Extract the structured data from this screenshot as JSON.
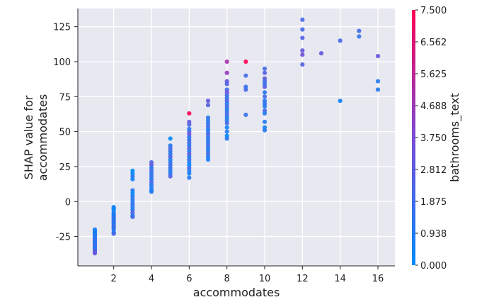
{
  "chart_data": {
    "type": "scatter",
    "title": "",
    "xlabel": "accommodates",
    "ylabel_lines": [
      "SHAP value for",
      "accommodates"
    ],
    "xlim": [
      0.1,
      16.9
    ],
    "ylim": [
      -46,
      138
    ],
    "x_ticks": [
      2,
      4,
      6,
      8,
      10,
      12,
      14,
      16
    ],
    "y_ticks": [
      -25,
      0,
      25,
      50,
      75,
      100,
      125
    ],
    "grid": true,
    "plot_background": "#e8e8f1",
    "colorbar": {
      "label": "bathrooms_text",
      "min": 0.0,
      "max": 7.5,
      "ticks": [
        "0.000",
        "0.938",
        "1.875",
        "2.812",
        "3.750",
        "4.688",
        "5.625",
        "6.562",
        "7.500"
      ],
      "colors": [
        "#008afb",
        "#7a4ad6",
        "#ff0052"
      ]
    },
    "points": [
      {
        "x": 1,
        "y": -20,
        "c": 1.0
      },
      {
        "x": 1,
        "y": -21,
        "c": 0.0
      },
      {
        "x": 1,
        "y": -22,
        "c": 1.0
      },
      {
        "x": 1,
        "y": -23,
        "c": 0.5
      },
      {
        "x": 1,
        "y": -24,
        "c": 1.0
      },
      {
        "x": 1,
        "y": -25,
        "c": 1.5
      },
      {
        "x": 1,
        "y": -26,
        "c": 1.0
      },
      {
        "x": 1,
        "y": -27,
        "c": 1.0
      },
      {
        "x": 1,
        "y": -28,
        "c": 2.0
      },
      {
        "x": 1,
        "y": -29,
        "c": 1.0
      },
      {
        "x": 1,
        "y": -30,
        "c": 1.5
      },
      {
        "x": 1,
        "y": -31,
        "c": 1.0
      },
      {
        "x": 1,
        "y": -32,
        "c": 2.5
      },
      {
        "x": 1,
        "y": -33,
        "c": 1.0
      },
      {
        "x": 1,
        "y": -34,
        "c": 1.0
      },
      {
        "x": 1,
        "y": -35,
        "c": 2.0
      },
      {
        "x": 1,
        "y": -36,
        "c": 3.0
      },
      {
        "x": 1,
        "y": -37,
        "c": 3.0
      },
      {
        "x": 2,
        "y": -4,
        "c": 0.0
      },
      {
        "x": 2,
        "y": -5,
        "c": 1.0
      },
      {
        "x": 2,
        "y": -6,
        "c": 0.0
      },
      {
        "x": 2,
        "y": -8,
        "c": 1.0
      },
      {
        "x": 2,
        "y": -9,
        "c": 1.0
      },
      {
        "x": 2,
        "y": -10,
        "c": 0.5
      },
      {
        "x": 2,
        "y": -11,
        "c": 1.0
      },
      {
        "x": 2,
        "y": -12,
        "c": 1.5
      },
      {
        "x": 2,
        "y": -13,
        "c": 1.0
      },
      {
        "x": 2,
        "y": -14,
        "c": 1.0
      },
      {
        "x": 2,
        "y": -15,
        "c": 2.0
      },
      {
        "x": 2,
        "y": -16,
        "c": 1.0
      },
      {
        "x": 2,
        "y": -17,
        "c": 1.0
      },
      {
        "x": 2,
        "y": -18,
        "c": 2.5
      },
      {
        "x": 2,
        "y": -19,
        "c": 1.0
      },
      {
        "x": 2,
        "y": -20,
        "c": 1.5
      },
      {
        "x": 2,
        "y": -22,
        "c": 1.0
      },
      {
        "x": 2,
        "y": -23,
        "c": 2.0
      },
      {
        "x": 3,
        "y": 22,
        "c": 0.0
      },
      {
        "x": 3,
        "y": 20,
        "c": 0.0
      },
      {
        "x": 3,
        "y": 18,
        "c": 1.0
      },
      {
        "x": 3,
        "y": 16,
        "c": 0.5
      },
      {
        "x": 3,
        "y": 8,
        "c": 1.0
      },
      {
        "x": 3,
        "y": 6,
        "c": 0.0
      },
      {
        "x": 3,
        "y": 4,
        "c": 1.0
      },
      {
        "x": 3,
        "y": 2,
        "c": 1.0
      },
      {
        "x": 3,
        "y": 0,
        "c": 1.0
      },
      {
        "x": 3,
        "y": -2,
        "c": 1.5
      },
      {
        "x": 3,
        "y": -4,
        "c": 1.0
      },
      {
        "x": 3,
        "y": -6,
        "c": 1.0
      },
      {
        "x": 3,
        "y": -8,
        "c": 2.5
      },
      {
        "x": 3,
        "y": -10,
        "c": 1.0
      },
      {
        "x": 3,
        "y": -11,
        "c": 2.0
      },
      {
        "x": 4,
        "y": 28,
        "c": 2.5
      },
      {
        "x": 4,
        "y": 26,
        "c": 3.0
      },
      {
        "x": 4,
        "y": 24,
        "c": 1.0
      },
      {
        "x": 4,
        "y": 22,
        "c": 2.0
      },
      {
        "x": 4,
        "y": 20,
        "c": 1.0
      },
      {
        "x": 4,
        "y": 18,
        "c": 1.5
      },
      {
        "x": 4,
        "y": 16,
        "c": 1.0
      },
      {
        "x": 4,
        "y": 14,
        "c": 2.0
      },
      {
        "x": 4,
        "y": 12,
        "c": 1.0
      },
      {
        "x": 4,
        "y": 10,
        "c": 1.0
      },
      {
        "x": 4,
        "y": 8,
        "c": 0.5
      },
      {
        "x": 4,
        "y": 7,
        "c": 1.0
      },
      {
        "x": 5,
        "y": 45,
        "c": 0.0
      },
      {
        "x": 5,
        "y": 40,
        "c": 1.0
      },
      {
        "x": 5,
        "y": 38,
        "c": 2.0
      },
      {
        "x": 5,
        "y": 36,
        "c": 1.5
      },
      {
        "x": 5,
        "y": 34,
        "c": 1.0
      },
      {
        "x": 5,
        "y": 32,
        "c": 2.5
      },
      {
        "x": 5,
        "y": 30,
        "c": 1.0
      },
      {
        "x": 5,
        "y": 28,
        "c": 1.0
      },
      {
        "x": 5,
        "y": 26,
        "c": 2.0
      },
      {
        "x": 5,
        "y": 24,
        "c": 1.5
      },
      {
        "x": 5,
        "y": 22,
        "c": 1.0
      },
      {
        "x": 5,
        "y": 20,
        "c": 1.0
      },
      {
        "x": 5,
        "y": 18,
        "c": 2.5
      },
      {
        "x": 6,
        "y": 63,
        "c": 7.5
      },
      {
        "x": 6,
        "y": 57,
        "c": 3.0
      },
      {
        "x": 6,
        "y": 55,
        "c": 2.5
      },
      {
        "x": 6,
        "y": 52,
        "c": 1.0
      },
      {
        "x": 6,
        "y": 50,
        "c": 2.0
      },
      {
        "x": 6,
        "y": 48,
        "c": 3.5
      },
      {
        "x": 6,
        "y": 46,
        "c": 1.0
      },
      {
        "x": 6,
        "y": 44,
        "c": 1.5
      },
      {
        "x": 6,
        "y": 42,
        "c": 2.0
      },
      {
        "x": 6,
        "y": 40,
        "c": 1.0
      },
      {
        "x": 6,
        "y": 38,
        "c": 2.5
      },
      {
        "x": 6,
        "y": 36,
        "c": 1.0
      },
      {
        "x": 6,
        "y": 34,
        "c": 3.0
      },
      {
        "x": 6,
        "y": 32,
        "c": 1.0
      },
      {
        "x": 6,
        "y": 30,
        "c": 1.5
      },
      {
        "x": 6,
        "y": 28,
        "c": 1.0
      },
      {
        "x": 6,
        "y": 26,
        "c": 0.0
      },
      {
        "x": 6,
        "y": 24,
        "c": 2.0
      },
      {
        "x": 6,
        "y": 22,
        "c": 1.0
      },
      {
        "x": 6,
        "y": 20,
        "c": 0.5
      },
      {
        "x": 6,
        "y": 17,
        "c": 1.0
      },
      {
        "x": 7,
        "y": 72,
        "c": 3.0
      },
      {
        "x": 7,
        "y": 69,
        "c": 2.5
      },
      {
        "x": 7,
        "y": 60,
        "c": 1.0
      },
      {
        "x": 7,
        "y": 58,
        "c": 1.5
      },
      {
        "x": 7,
        "y": 56,
        "c": 1.0
      },
      {
        "x": 7,
        "y": 54,
        "c": 2.0
      },
      {
        "x": 7,
        "y": 52,
        "c": 1.0
      },
      {
        "x": 7,
        "y": 50,
        "c": 1.0
      },
      {
        "x": 7,
        "y": 48,
        "c": 2.5
      },
      {
        "x": 7,
        "y": 46,
        "c": 1.0
      },
      {
        "x": 7,
        "y": 44,
        "c": 1.5
      },
      {
        "x": 7,
        "y": 42,
        "c": 1.0
      },
      {
        "x": 7,
        "y": 40,
        "c": 2.0
      },
      {
        "x": 7,
        "y": 38,
        "c": 1.0
      },
      {
        "x": 7,
        "y": 36,
        "c": 1.0
      },
      {
        "x": 7,
        "y": 34,
        "c": 2.0
      },
      {
        "x": 7,
        "y": 32,
        "c": 1.0
      },
      {
        "x": 7,
        "y": 30,
        "c": 0.5
      },
      {
        "x": 8,
        "y": 100,
        "c": 5.0
      },
      {
        "x": 8,
        "y": 92,
        "c": 4.5
      },
      {
        "x": 8,
        "y": 86,
        "c": 3.0
      },
      {
        "x": 8,
        "y": 84,
        "c": 2.5
      },
      {
        "x": 8,
        "y": 80,
        "c": 2.0
      },
      {
        "x": 8,
        "y": 78,
        "c": 3.5
      },
      {
        "x": 8,
        "y": 76,
        "c": 2.0
      },
      {
        "x": 8,
        "y": 74,
        "c": 1.5
      },
      {
        "x": 8,
        "y": 72,
        "c": 2.5
      },
      {
        "x": 8,
        "y": 70,
        "c": 1.0
      },
      {
        "x": 8,
        "y": 68,
        "c": 2.0
      },
      {
        "x": 8,
        "y": 66,
        "c": 1.0
      },
      {
        "x": 8,
        "y": 64,
        "c": 1.5
      },
      {
        "x": 8,
        "y": 62,
        "c": 2.0
      },
      {
        "x": 8,
        "y": 60,
        "c": 1.0
      },
      {
        "x": 8,
        "y": 58,
        "c": 1.0
      },
      {
        "x": 8,
        "y": 56,
        "c": 2.0
      },
      {
        "x": 8,
        "y": 53,
        "c": 0.5
      },
      {
        "x": 8,
        "y": 50,
        "c": 1.0
      },
      {
        "x": 8,
        "y": 47,
        "c": 0.0
      },
      {
        "x": 8,
        "y": 45,
        "c": 1.0
      },
      {
        "x": 9,
        "y": 100,
        "c": 7.5
      },
      {
        "x": 9,
        "y": 90,
        "c": 2.0
      },
      {
        "x": 9,
        "y": 82,
        "c": 1.5
      },
      {
        "x": 9,
        "y": 80,
        "c": 2.0
      },
      {
        "x": 9,
        "y": 62,
        "c": 1.5
      },
      {
        "x": 10,
        "y": 95,
        "c": 2.0
      },
      {
        "x": 10,
        "y": 92,
        "c": 2.5
      },
      {
        "x": 10,
        "y": 88,
        "c": 3.0
      },
      {
        "x": 10,
        "y": 86,
        "c": 2.0
      },
      {
        "x": 10,
        "y": 84,
        "c": 1.5
      },
      {
        "x": 10,
        "y": 82,
        "c": 2.5
      },
      {
        "x": 10,
        "y": 78,
        "c": 1.0
      },
      {
        "x": 10,
        "y": 75,
        "c": 2.0
      },
      {
        "x": 10,
        "y": 72,
        "c": 1.0
      },
      {
        "x": 10,
        "y": 70,
        "c": 1.5
      },
      {
        "x": 10,
        "y": 68,
        "c": 1.0
      },
      {
        "x": 10,
        "y": 65,
        "c": 2.0
      },
      {
        "x": 10,
        "y": 63,
        "c": 1.0
      },
      {
        "x": 10,
        "y": 57,
        "c": 1.0
      },
      {
        "x": 10,
        "y": 53,
        "c": 0.5
      },
      {
        "x": 10,
        "y": 51,
        "c": 1.0
      },
      {
        "x": 12,
        "y": 130,
        "c": 2.0
      },
      {
        "x": 12,
        "y": 123,
        "c": 2.0
      },
      {
        "x": 12,
        "y": 117,
        "c": 2.5
      },
      {
        "x": 12,
        "y": 108,
        "c": 3.0
      },
      {
        "x": 12,
        "y": 105,
        "c": 3.5
      },
      {
        "x": 12,
        "y": 98,
        "c": 2.5
      },
      {
        "x": 13,
        "y": 106,
        "c": 3.0
      },
      {
        "x": 14,
        "y": 115,
        "c": 2.0
      },
      {
        "x": 14,
        "y": 72,
        "c": 0.5
      },
      {
        "x": 15,
        "y": 122,
        "c": 2.0
      },
      {
        "x": 15,
        "y": 118,
        "c": 1.5
      },
      {
        "x": 16,
        "y": 104,
        "c": 3.0
      },
      {
        "x": 16,
        "y": 86,
        "c": 1.0
      },
      {
        "x": 16,
        "y": 80,
        "c": 1.0
      }
    ]
  }
}
